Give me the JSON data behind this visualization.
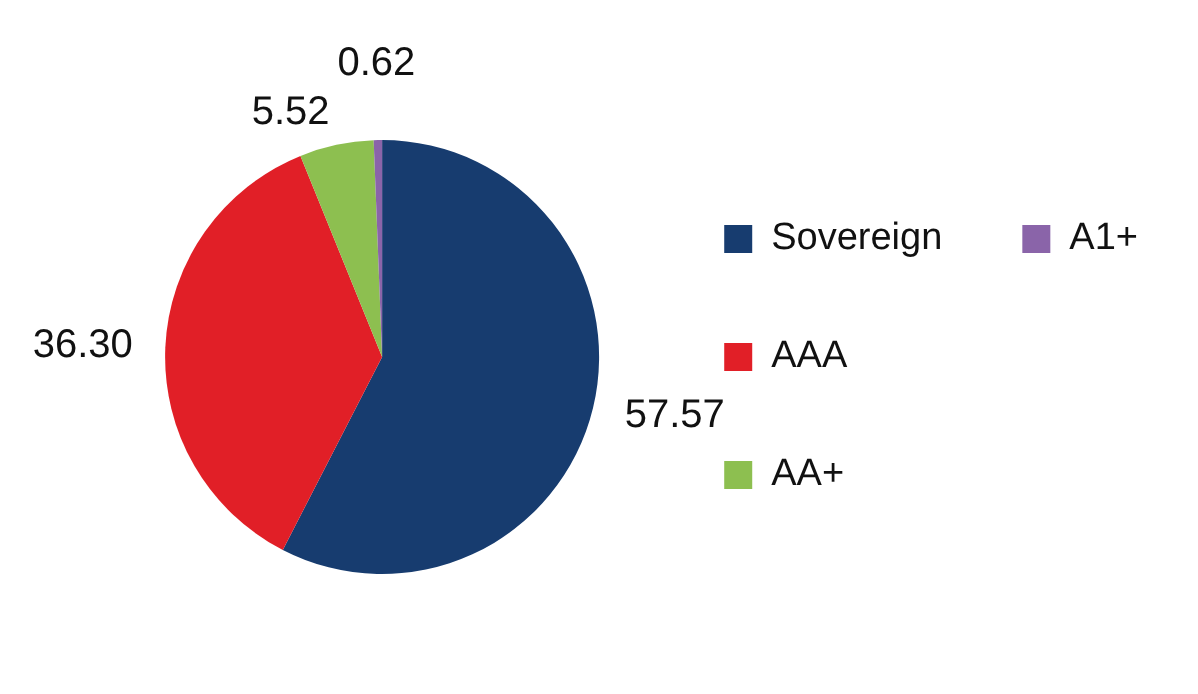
{
  "chart_data": {
    "type": "pie",
    "categories": [
      "Sovereign",
      "AAA",
      "AA+",
      "A1+"
    ],
    "values": [
      57.57,
      36.3,
      5.52,
      0.62
    ],
    "colors": [
      "#173c6f",
      "#e11f27",
      "#8dbf50",
      "#8a64a9"
    ],
    "value_labels": [
      "57.57",
      "36.30",
      "5.52",
      "0.62"
    ],
    "legend": "right"
  }
}
